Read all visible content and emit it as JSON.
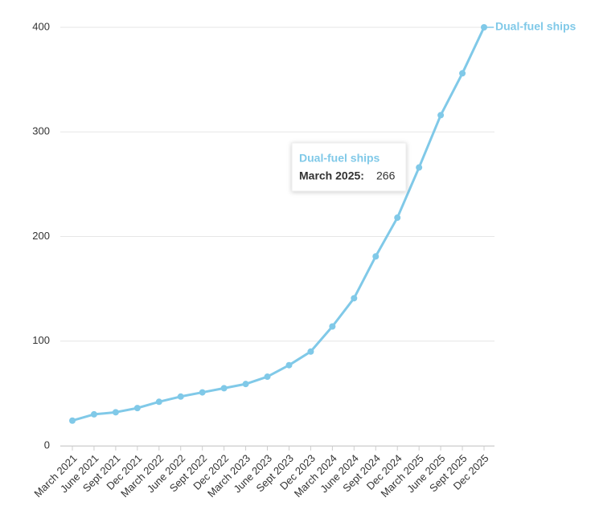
{
  "chart_data": {
    "type": "line",
    "categories": [
      "March 2021",
      "June 2021",
      "Sept 2021",
      "Dec 2021",
      "March 2022",
      "June 2022",
      "Sept 2022",
      "Dec 2022",
      "March 2023",
      "June 2023",
      "Sept 2023",
      "Dec 2023",
      "March 2024",
      "June 2024",
      "Sept 2024",
      "Dec 2024",
      "March 2025",
      "June 2025",
      "Sept 2025",
      "Dec 2025"
    ],
    "series": [
      {
        "name": "Dual-fuel ships",
        "color": "#80c9e8",
        "values": [
          24,
          30,
          32,
          36,
          42,
          47,
          51,
          55,
          59,
          66,
          77,
          90,
          114,
          141,
          181,
          218,
          266,
          316,
          356,
          400
        ]
      }
    ],
    "ylim": [
      0,
      400
    ],
    "yticks": [
      0,
      100,
      200,
      300,
      400
    ],
    "grid": true,
    "tooltip": {
      "label": "March 2025:",
      "value": 266
    }
  }
}
